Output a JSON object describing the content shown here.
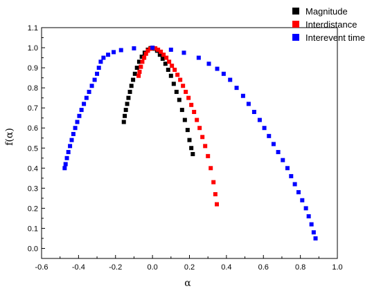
{
  "chart_data": {
    "type": "scatter",
    "xlabel": "α",
    "ylabel": "f(α)",
    "xlim": [
      -0.6,
      1.0
    ],
    "ylim": [
      -0.05,
      1.1
    ],
    "xticks": [
      "-0.6",
      "-0.4",
      "-0.2",
      "0.0",
      "0.2",
      "0.4",
      "0.6",
      "0.8",
      "1.0"
    ],
    "yticks": [
      "0.0",
      "0.1",
      "0.2",
      "0.3",
      "0.4",
      "0.5",
      "0.6",
      "0.7",
      "0.8",
      "0.9",
      "1.0",
      "1.1"
    ],
    "grid": false,
    "legend_position": "top-right",
    "series": [
      {
        "name": "Magnitude",
        "color": "#000000",
        "points": [
          [
            -0.155,
            0.63
          ],
          [
            -0.15,
            0.66
          ],
          [
            -0.144,
            0.69
          ],
          [
            -0.137,
            0.72
          ],
          [
            -0.13,
            0.75
          ],
          [
            -0.122,
            0.78
          ],
          [
            -0.114,
            0.81
          ],
          [
            -0.105,
            0.84
          ],
          [
            -0.095,
            0.87
          ],
          [
            -0.084,
            0.9
          ],
          [
            -0.072,
            0.93
          ],
          [
            -0.058,
            0.955
          ],
          [
            -0.042,
            0.975
          ],
          [
            -0.025,
            0.99
          ],
          [
            -0.01,
            0.998
          ],
          [
            0.0,
            1.0
          ],
          [
            0.012,
            0.995
          ],
          [
            0.025,
            0.985
          ],
          [
            0.04,
            0.965
          ],
          [
            0.055,
            0.945
          ],
          [
            0.07,
            0.92
          ],
          [
            0.085,
            0.89
          ],
          [
            0.1,
            0.86
          ],
          [
            0.115,
            0.82
          ],
          [
            0.13,
            0.78
          ],
          [
            0.145,
            0.74
          ],
          [
            0.16,
            0.69
          ],
          [
            0.175,
            0.64
          ],
          [
            0.19,
            0.59
          ],
          [
            0.2,
            0.54
          ],
          [
            0.21,
            0.5
          ],
          [
            0.218,
            0.47
          ]
        ]
      },
      {
        "name": "Interdistance",
        "color": "#ff0000",
        "points": [
          [
            -0.075,
            0.86
          ],
          [
            -0.07,
            0.88
          ],
          [
            -0.063,
            0.905
          ],
          [
            -0.055,
            0.93
          ],
          [
            -0.045,
            0.95
          ],
          [
            -0.035,
            0.97
          ],
          [
            -0.025,
            0.985
          ],
          [
            -0.012,
            0.995
          ],
          [
            0.0,
            1.0
          ],
          [
            0.015,
            0.997
          ],
          [
            0.03,
            0.99
          ],
          [
            0.045,
            0.98
          ],
          [
            0.06,
            0.965
          ],
          [
            0.075,
            0.95
          ],
          [
            0.09,
            0.93
          ],
          [
            0.105,
            0.91
          ],
          [
            0.12,
            0.89
          ],
          [
            0.135,
            0.865
          ],
          [
            0.15,
            0.84
          ],
          [
            0.165,
            0.81
          ],
          [
            0.18,
            0.78
          ],
          [
            0.195,
            0.75
          ],
          [
            0.21,
            0.715
          ],
          [
            0.225,
            0.68
          ],
          [
            0.24,
            0.64
          ],
          [
            0.255,
            0.6
          ],
          [
            0.27,
            0.555
          ],
          [
            0.285,
            0.51
          ],
          [
            0.3,
            0.46
          ],
          [
            0.315,
            0.4
          ],
          [
            0.33,
            0.33
          ],
          [
            0.34,
            0.27
          ],
          [
            0.348,
            0.22
          ]
        ]
      },
      {
        "name": "Interevent time",
        "color": "#0000ff",
        "points": [
          [
            -0.475,
            0.4
          ],
          [
            -0.47,
            0.42
          ],
          [
            -0.463,
            0.45
          ],
          [
            -0.455,
            0.48
          ],
          [
            -0.446,
            0.51
          ],
          [
            -0.437,
            0.54
          ],
          [
            -0.428,
            0.57
          ],
          [
            -0.418,
            0.6
          ],
          [
            -0.407,
            0.63
          ],
          [
            -0.396,
            0.66
          ],
          [
            -0.384,
            0.69
          ],
          [
            -0.371,
            0.72
          ],
          [
            -0.357,
            0.75
          ],
          [
            -0.343,
            0.78
          ],
          [
            -0.328,
            0.81
          ],
          [
            -0.313,
            0.84
          ],
          [
            -0.3,
            0.87
          ],
          [
            -0.29,
            0.9
          ],
          [
            -0.28,
            0.93
          ],
          [
            -0.265,
            0.95
          ],
          [
            -0.24,
            0.965
          ],
          [
            -0.21,
            0.978
          ],
          [
            -0.17,
            0.988
          ],
          [
            -0.1,
            0.997
          ],
          [
            0.0,
            1.0
          ],
          [
            0.1,
            0.99
          ],
          [
            0.17,
            0.975
          ],
          [
            0.25,
            0.95
          ],
          [
            0.305,
            0.92
          ],
          [
            0.35,
            0.895
          ],
          [
            0.385,
            0.87
          ],
          [
            0.42,
            0.84
          ],
          [
            0.455,
            0.8
          ],
          [
            0.49,
            0.76
          ],
          [
            0.52,
            0.72
          ],
          [
            0.55,
            0.68
          ],
          [
            0.58,
            0.64
          ],
          [
            0.605,
            0.6
          ],
          [
            0.63,
            0.56
          ],
          [
            0.655,
            0.52
          ],
          [
            0.68,
            0.48
          ],
          [
            0.705,
            0.44
          ],
          [
            0.73,
            0.4
          ],
          [
            0.75,
            0.36
          ],
          [
            0.77,
            0.32
          ],
          [
            0.79,
            0.28
          ],
          [
            0.81,
            0.24
          ],
          [
            0.83,
            0.2
          ],
          [
            0.845,
            0.16
          ],
          [
            0.86,
            0.12
          ],
          [
            0.872,
            0.08
          ],
          [
            0.882,
            0.05
          ]
        ]
      }
    ]
  }
}
